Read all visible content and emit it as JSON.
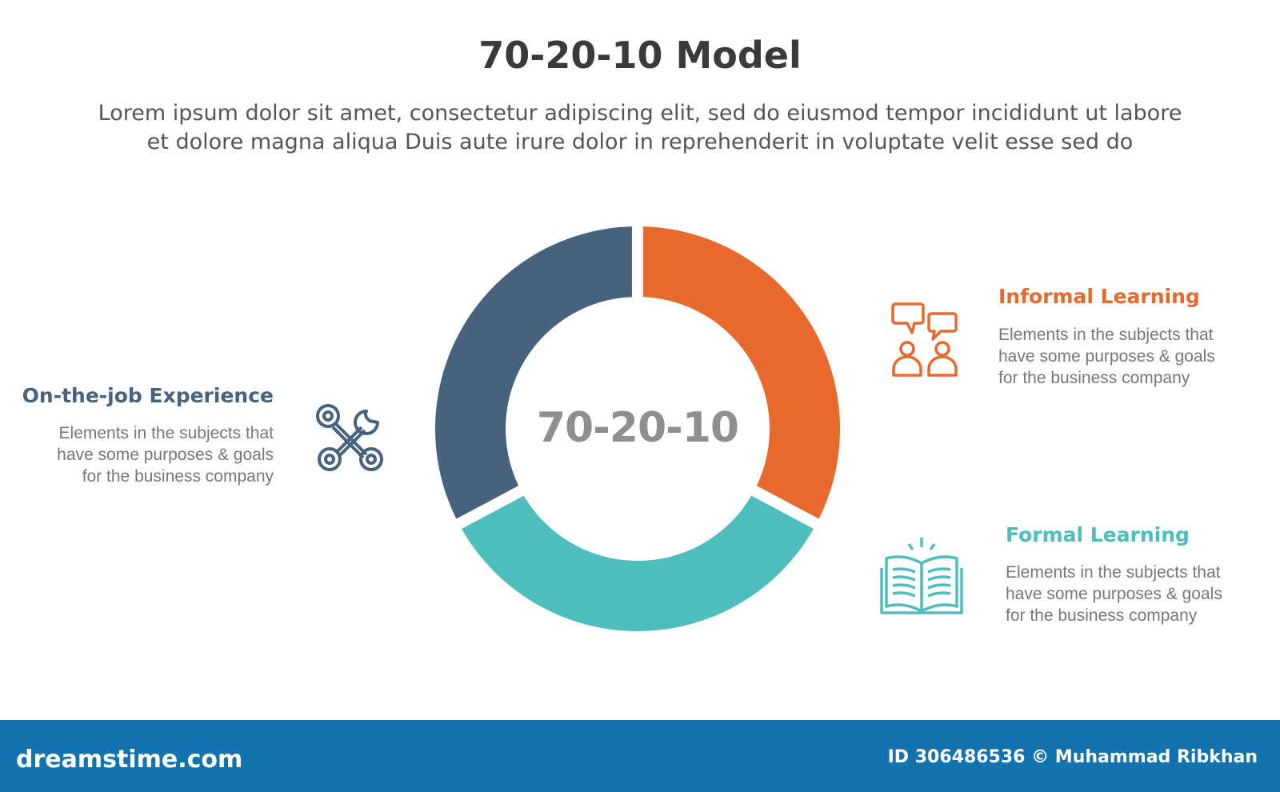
{
  "title": "70-20-10 Model",
  "subtitle": [
    "Lorem ipsum dolor sit amet, consectetur adipiscing elit, sed do eiusmod tempor incididunt ut labore",
    "et dolore magna aliqua Duis aute irure dolor in reprehenderit in voluptate velit esse sed do"
  ],
  "center_label": "70-20-10",
  "segments": [
    {
      "name": "Informal Learning",
      "color": "#e8692e",
      "start_deg": 0,
      "end_deg": 118
    },
    {
      "name": "Formal Learning",
      "color": "#4dbdbd",
      "start_deg": 118,
      "end_deg": 242
    },
    {
      "name": "On-the-job Experience",
      "color": "#46627c",
      "start_deg": 242,
      "end_deg": 360
    }
  ],
  "items": {
    "onjob": {
      "title": "On-the-job Experience",
      "desc": [
        "Elements in the subjects that",
        "have  some purposes & goals",
        "for the  business company"
      ],
      "icon": "wrench-screwdriver-icon",
      "color": "#46627c"
    },
    "informal": {
      "title": "Informal Learning",
      "desc": [
        "Elements in the subjects that",
        "have  some purposes & goals",
        "for the  business company"
      ],
      "icon": "people-chat-icon",
      "color": "#e8692e"
    },
    "formal": {
      "title": "Formal Learning",
      "desc": [
        "Elements in the subjects that",
        "have  some purposes & goals",
        "for the  business company"
      ],
      "icon": "open-book-icon",
      "color": "#4dbdbd"
    }
  },
  "footer": {
    "brand": "dreamstime.com",
    "credit": "ID 306486536 © Muhammad Ribkhan",
    "color": "#1273ae"
  }
}
